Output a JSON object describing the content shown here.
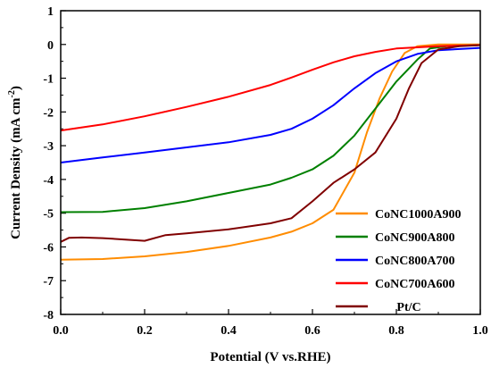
{
  "chart_data": {
    "type": "line",
    "title": "",
    "xlabel": "Potential (V vs.RHE)",
    "ylabel": "Current Density (mA cm",
    "ylabel_sup": "-2",
    "ylabel_close": ")",
    "xlim": [
      0.0,
      1.0
    ],
    "ylim": [
      -8,
      1
    ],
    "xticks": [
      "0.0",
      "0.2",
      "0.4",
      "0.6",
      "0.8",
      "1.0"
    ],
    "yticks": [
      "1",
      "0",
      "-1",
      "-2",
      "-3",
      "-4",
      "-5",
      "-6",
      "-7",
      "-8"
    ],
    "legend_position": "bottom-right",
    "series": [
      {
        "name": "CoNC1000A900",
        "color": "#ff8c00",
        "points": [
          [
            0.0,
            -6.38
          ],
          [
            0.1,
            -6.36
          ],
          [
            0.2,
            -6.28
          ],
          [
            0.3,
            -6.15
          ],
          [
            0.4,
            -5.97
          ],
          [
            0.5,
            -5.72
          ],
          [
            0.55,
            -5.55
          ],
          [
            0.6,
            -5.3
          ],
          [
            0.65,
            -4.9
          ],
          [
            0.7,
            -3.8
          ],
          [
            0.73,
            -2.6
          ],
          [
            0.76,
            -1.6
          ],
          [
            0.79,
            -0.8
          ],
          [
            0.82,
            -0.25
          ],
          [
            0.85,
            -0.05
          ],
          [
            0.9,
            0.0
          ],
          [
            1.0,
            0.0
          ]
        ]
      },
      {
        "name": "CoNC900A800",
        "color": "#008000",
        "points": [
          [
            0.0,
            -4.97
          ],
          [
            0.1,
            -4.96
          ],
          [
            0.2,
            -4.85
          ],
          [
            0.3,
            -4.65
          ],
          [
            0.4,
            -4.4
          ],
          [
            0.5,
            -4.15
          ],
          [
            0.55,
            -3.95
          ],
          [
            0.6,
            -3.7
          ],
          [
            0.65,
            -3.3
          ],
          [
            0.7,
            -2.7
          ],
          [
            0.75,
            -1.9
          ],
          [
            0.8,
            -1.1
          ],
          [
            0.85,
            -0.45
          ],
          [
            0.88,
            -0.12
          ],
          [
            0.92,
            -0.05
          ],
          [
            1.0,
            -0.02
          ]
        ]
      },
      {
        "name": "CoNC800A700",
        "color": "#0000ff",
        "points": [
          [
            0.0,
            -3.5
          ],
          [
            0.1,
            -3.35
          ],
          [
            0.2,
            -3.2
          ],
          [
            0.3,
            -3.05
          ],
          [
            0.4,
            -2.9
          ],
          [
            0.5,
            -2.68
          ],
          [
            0.55,
            -2.5
          ],
          [
            0.6,
            -2.2
          ],
          [
            0.65,
            -1.8
          ],
          [
            0.7,
            -1.3
          ],
          [
            0.75,
            -0.85
          ],
          [
            0.8,
            -0.5
          ],
          [
            0.85,
            -0.28
          ],
          [
            0.9,
            -0.17
          ],
          [
            1.0,
            -0.1
          ]
        ]
      },
      {
        "name": "CoNC700A600",
        "color": "#ff0000",
        "points": [
          [
            0.0,
            -2.55
          ],
          [
            0.1,
            -2.37
          ],
          [
            0.2,
            -2.13
          ],
          [
            0.3,
            -1.85
          ],
          [
            0.4,
            -1.55
          ],
          [
            0.5,
            -1.2
          ],
          [
            0.55,
            -0.98
          ],
          [
            0.6,
            -0.75
          ],
          [
            0.65,
            -0.53
          ],
          [
            0.7,
            -0.35
          ],
          [
            0.75,
            -0.22
          ],
          [
            0.8,
            -0.12
          ],
          [
            0.9,
            -0.05
          ],
          [
            1.0,
            -0.02
          ]
        ]
      },
      {
        "name": "Pt/C",
        "color": "#800000",
        "points": [
          [
            0.0,
            -5.85
          ],
          [
            0.02,
            -5.73
          ],
          [
            0.05,
            -5.72
          ],
          [
            0.1,
            -5.74
          ],
          [
            0.15,
            -5.78
          ],
          [
            0.2,
            -5.82
          ],
          [
            0.25,
            -5.65
          ],
          [
            0.3,
            -5.6
          ],
          [
            0.4,
            -5.48
          ],
          [
            0.5,
            -5.3
          ],
          [
            0.55,
            -5.15
          ],
          [
            0.6,
            -4.65
          ],
          [
            0.65,
            -4.1
          ],
          [
            0.7,
            -3.7
          ],
          [
            0.75,
            -3.2
          ],
          [
            0.8,
            -2.2
          ],
          [
            0.83,
            -1.3
          ],
          [
            0.86,
            -0.55
          ],
          [
            0.9,
            -0.15
          ],
          [
            0.95,
            -0.05
          ],
          [
            1.0,
            -0.02
          ]
        ]
      }
    ]
  }
}
